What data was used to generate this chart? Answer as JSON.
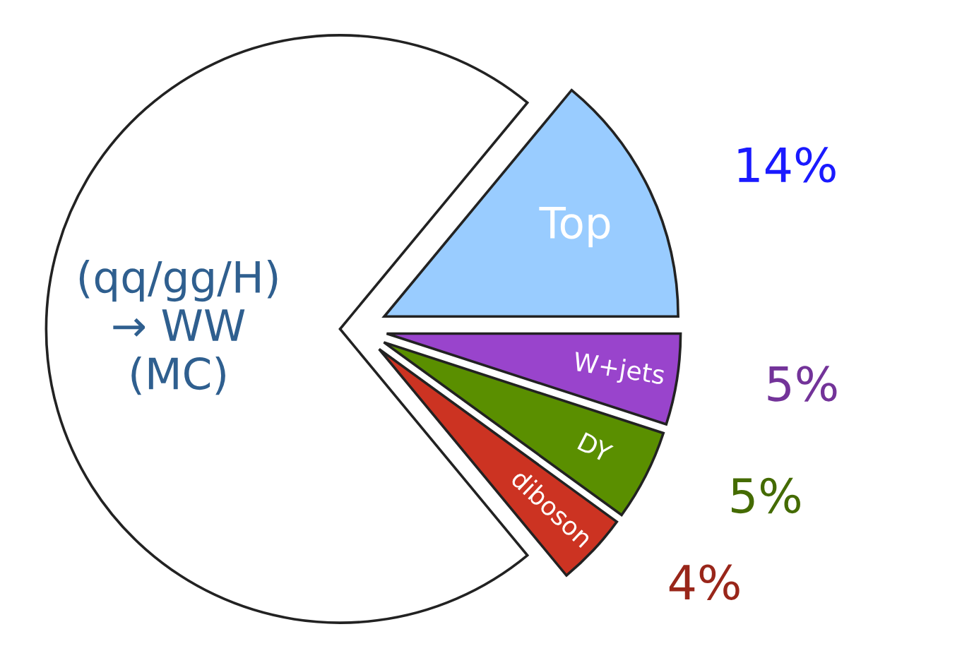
{
  "chart_data": {
    "type": "pie",
    "categories": [
      "(qq/gg/H)\n→ WW\n(MC)",
      "Top",
      "W+jets",
      "DY",
      "diboson"
    ],
    "values": [
      72,
      14,
      5,
      5,
      4
    ],
    "colors": [
      "#ffffff",
      "#99ccff",
      "#9944cc",
      "#5a8f00",
      "#cc3322"
    ],
    "value_labels": [
      null,
      "14%",
      "5%",
      "5%",
      "4%"
    ],
    "legend": false
  }
}
